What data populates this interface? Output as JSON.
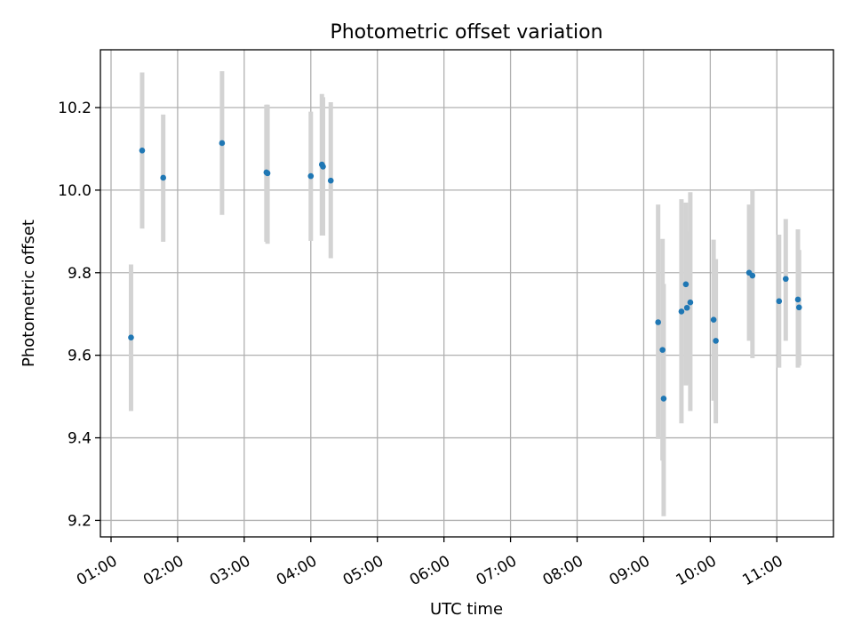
{
  "chart_data": {
    "type": "scatter",
    "title": "Photometric offset variation",
    "xlabel": "UTC time",
    "ylabel": "Photometric offset",
    "xlim_hours": [
      0.84,
      11.85
    ],
    "ylim": [
      9.16,
      10.34
    ],
    "x_ticks": [
      {
        "hour": 1,
        "label": "01:00"
      },
      {
        "hour": 2,
        "label": "02:00"
      },
      {
        "hour": 3,
        "label": "03:00"
      },
      {
        "hour": 4,
        "label": "04:00"
      },
      {
        "hour": 5,
        "label": "05:00"
      },
      {
        "hour": 6,
        "label": "06:00"
      },
      {
        "hour": 7,
        "label": "07:00"
      },
      {
        "hour": 8,
        "label": "08:00"
      },
      {
        "hour": 9,
        "label": "09:00"
      },
      {
        "hour": 10,
        "label": "10:00"
      },
      {
        "hour": 11,
        "label": "11:00"
      }
    ],
    "y_ticks": [
      {
        "value": 9.2,
        "label": "9.2"
      },
      {
        "value": 9.4,
        "label": "9.4"
      },
      {
        "value": 9.6,
        "label": "9.6"
      },
      {
        "value": 9.8,
        "label": "9.8"
      },
      {
        "value": 10.0,
        "label": "10.0"
      },
      {
        "value": 10.2,
        "label": "10.2"
      }
    ],
    "grid": true,
    "marker_color": "#1f77b4",
    "errorbar_color": "#d3d3d3",
    "points": [
      {
        "t": "01:18",
        "y": 9.643,
        "lo": 9.465,
        "hi": 9.82
      },
      {
        "t": "01:28",
        "y": 10.096,
        "lo": 9.907,
        "hi": 10.285
      },
      {
        "t": "01:47",
        "y": 10.03,
        "lo": 9.875,
        "hi": 10.183
      },
      {
        "t": "02:40",
        "y": 10.114,
        "lo": 9.94,
        "hi": 10.288
      },
      {
        "t": "03:20",
        "y": 10.043,
        "lo": 9.875,
        "hi": 10.207
      },
      {
        "t": "03:21",
        "y": 10.041,
        "lo": 9.87,
        "hi": 10.207
      },
      {
        "t": "04:00",
        "y": 10.034,
        "lo": 9.877,
        "hi": 10.19
      },
      {
        "t": "04:10",
        "y": 10.062,
        "lo": 9.89,
        "hi": 10.233
      },
      {
        "t": "04:11",
        "y": 10.057,
        "lo": 9.89,
        "hi": 10.225
      },
      {
        "t": "04:18",
        "y": 10.023,
        "lo": 9.835,
        "hi": 10.213
      },
      {
        "t": "09:13",
        "y": 9.68,
        "lo": 9.397,
        "hi": 9.965
      },
      {
        "t": "09:17",
        "y": 9.613,
        "lo": 9.345,
        "hi": 9.882
      },
      {
        "t": "09:18",
        "y": 9.495,
        "lo": 9.21,
        "hi": 9.773
      },
      {
        "t": "09:34",
        "y": 9.706,
        "lo": 9.435,
        "hi": 9.978
      },
      {
        "t": "09:38",
        "y": 9.772,
        "lo": 9.527,
        "hi": 9.97
      },
      {
        "t": "09:39",
        "y": 9.715,
        "lo": 9.53,
        "hi": 9.9
      },
      {
        "t": "09:42",
        "y": 9.728,
        "lo": 9.465,
        "hi": 9.995
      },
      {
        "t": "10:03",
        "y": 9.686,
        "lo": 9.49,
        "hi": 9.88
      },
      {
        "t": "10:05",
        "y": 9.635,
        "lo": 9.435,
        "hi": 9.833
      },
      {
        "t": "10:35",
        "y": 9.8,
        "lo": 9.635,
        "hi": 9.965
      },
      {
        "t": "10:38",
        "y": 9.793,
        "lo": 9.593,
        "hi": 10.0
      },
      {
        "t": "11:02",
        "y": 9.731,
        "lo": 9.57,
        "hi": 9.892
      },
      {
        "t": "11:08",
        "y": 9.785,
        "lo": 9.635,
        "hi": 9.93
      },
      {
        "t": "11:19",
        "y": 9.735,
        "lo": 9.57,
        "hi": 9.905
      },
      {
        "t": "11:20",
        "y": 9.716,
        "lo": 9.575,
        "hi": 9.855
      }
    ]
  }
}
